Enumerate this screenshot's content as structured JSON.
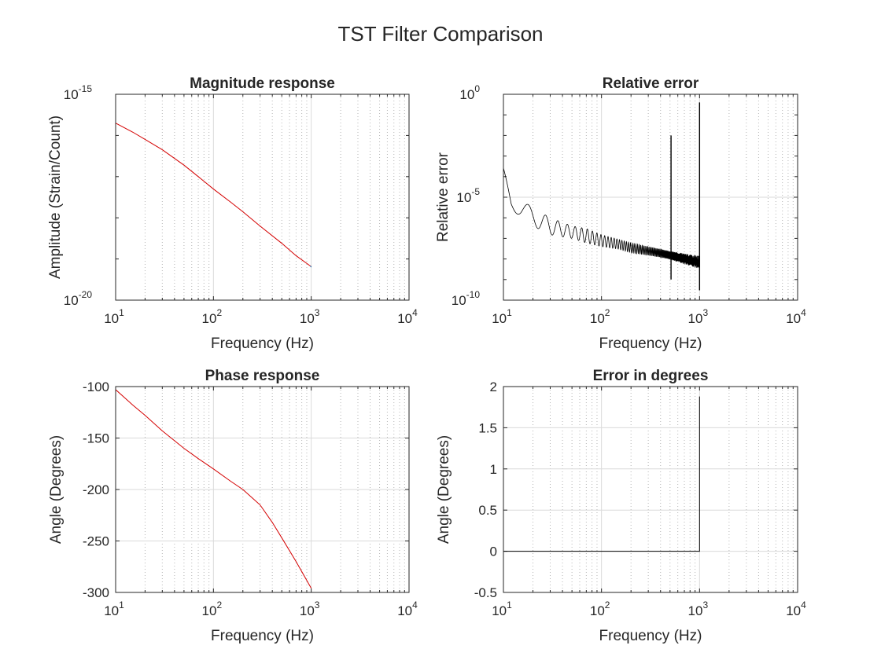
{
  "figure": {
    "title": "TST Filter Comparison"
  },
  "chart_data": [
    {
      "type": "line",
      "title": "Magnitude response",
      "xlabel": "Frequency (Hz)",
      "ylabel": "Amplitude (Strain/Count)",
      "xscale": "log",
      "yscale": "log",
      "xlim": [
        10,
        10000
      ],
      "ylim": [
        1e-20,
        1e-15
      ],
      "xticks": [
        {
          "base": "10",
          "exp": "1"
        },
        {
          "base": "10",
          "exp": "2"
        },
        {
          "base": "10",
          "exp": "3"
        },
        {
          "base": "10",
          "exp": "4"
        }
      ],
      "yticks": [
        {
          "base": "10",
          "exp": "-20"
        },
        {
          "base": "10",
          "exp": "-15"
        }
      ],
      "grid": true,
      "series": [
        {
          "color": "#d40000",
          "x": [
            10,
            15,
            20,
            30,
            50,
            70,
            100,
            150,
            200,
            300,
            500,
            700,
            1000
          ],
          "y": [
            2e-16,
            1.2e-16,
            8e-17,
            4.5e-17,
            1.9e-17,
            1e-17,
            5e-18,
            2.4e-18,
            1.4e-18,
            6.3e-19,
            2.4e-19,
            1.2e-19,
            6.5e-20
          ]
        },
        {
          "color": "#0072bd",
          "x": [
            980,
            1000
          ],
          "y": [
            6.8e-20,
            6.3e-20
          ]
        }
      ]
    },
    {
      "type": "line",
      "title": "Relative error",
      "xlabel": "Frequency (Hz)",
      "ylabel": "Relative error",
      "xscale": "log",
      "yscale": "log",
      "xlim": [
        10,
        10000
      ],
      "ylim": [
        1e-10,
        1
      ],
      "xticks": [
        {
          "base": "10",
          "exp": "1"
        },
        {
          "base": "10",
          "exp": "2"
        },
        {
          "base": "10",
          "exp": "3"
        },
        {
          "base": "10",
          "exp": "4"
        }
      ],
      "yticks": [
        {
          "base": "10",
          "exp": "-10"
        },
        {
          "base": "10",
          "exp": "-5"
        },
        {
          "base": "10",
          "exp": "0"
        }
      ],
      "grid": true,
      "envelope_upper": {
        "x": [
          10,
          12,
          15,
          20,
          30,
          50,
          70,
          100,
          150,
          200,
          300,
          400,
          480
        ],
        "y": [
          0.0003,
          2e-05,
          8e-06,
          3e-06,
          1e-06,
          4e-07,
          3e-07,
          1.5e-07,
          9e-08,
          6e-08,
          4e-08,
          3e-08,
          2.5e-08
        ]
      },
      "envelope_lower": {
        "x": [
          10,
          12,
          15,
          20,
          30,
          50,
          70,
          100,
          150,
          200,
          300,
          400,
          480
        ],
        "y": [
          0.0001,
          3e-06,
          1e-06,
          4e-07,
          1.5e-07,
          1e-07,
          6e-08,
          4e-08,
          3e-08,
          2e-08,
          1.5e-08,
          1.2e-08,
          1e-08
        ]
      },
      "spikes": [
        {
          "x": 512,
          "y_peak": 0.01,
          "y_base": 1e-09
        },
        {
          "x": 1000,
          "y_peak": 0.4,
          "y_base": 3e-10
        }
      ],
      "series": [
        {
          "color": "#000000"
        }
      ]
    },
    {
      "type": "line",
      "title": "Phase response",
      "xlabel": "Frequency (Hz)",
      "ylabel": "Angle (Degrees)",
      "xscale": "log",
      "yscale": "linear",
      "xlim": [
        10,
        10000
      ],
      "ylim": [
        -300,
        -100
      ],
      "xticks": [
        {
          "base": "10",
          "exp": "1"
        },
        {
          "base": "10",
          "exp": "2"
        },
        {
          "base": "10",
          "exp": "3"
        },
        {
          "base": "10",
          "exp": "4"
        }
      ],
      "yticks": [
        {
          "value": -300,
          "label": "-300"
        },
        {
          "value": -250,
          "label": "-250"
        },
        {
          "value": -200,
          "label": "-200"
        },
        {
          "value": -150,
          "label": "-150"
        },
        {
          "value": -100,
          "label": "-100"
        }
      ],
      "grid": true,
      "series": [
        {
          "color": "#d40000",
          "x": [
            10,
            15,
            20,
            30,
            50,
            70,
            100,
            150,
            200,
            300,
            400,
            500,
            700,
            1000
          ],
          "y": [
            -103,
            -118,
            -128,
            -143,
            -160,
            -170,
            -180,
            -192,
            -200,
            -215,
            -232,
            -247,
            -270,
            -296
          ]
        }
      ]
    },
    {
      "type": "line",
      "title": "Error in degrees",
      "xlabel": "Frequency (Hz)",
      "ylabel": "Angle (Degrees)",
      "xscale": "log",
      "yscale": "linear",
      "xlim": [
        10,
        10000
      ],
      "ylim": [
        -0.5,
        2
      ],
      "xticks": [
        {
          "base": "10",
          "exp": "1"
        },
        {
          "base": "10",
          "exp": "2"
        },
        {
          "base": "10",
          "exp": "3"
        },
        {
          "base": "10",
          "exp": "4"
        }
      ],
      "yticks": [
        {
          "value": -0.5,
          "label": "-0.5"
        },
        {
          "value": 0,
          "label": "0"
        },
        {
          "value": 0.5,
          "label": "0.5"
        },
        {
          "value": 1,
          "label": "1"
        },
        {
          "value": 1.5,
          "label": "1.5"
        },
        {
          "value": 2,
          "label": "2"
        }
      ],
      "grid": true,
      "series": [
        {
          "color": "#000000",
          "x": [
            10,
            1000,
            1000
          ],
          "y": [
            0,
            0,
            1.88
          ]
        }
      ]
    }
  ]
}
